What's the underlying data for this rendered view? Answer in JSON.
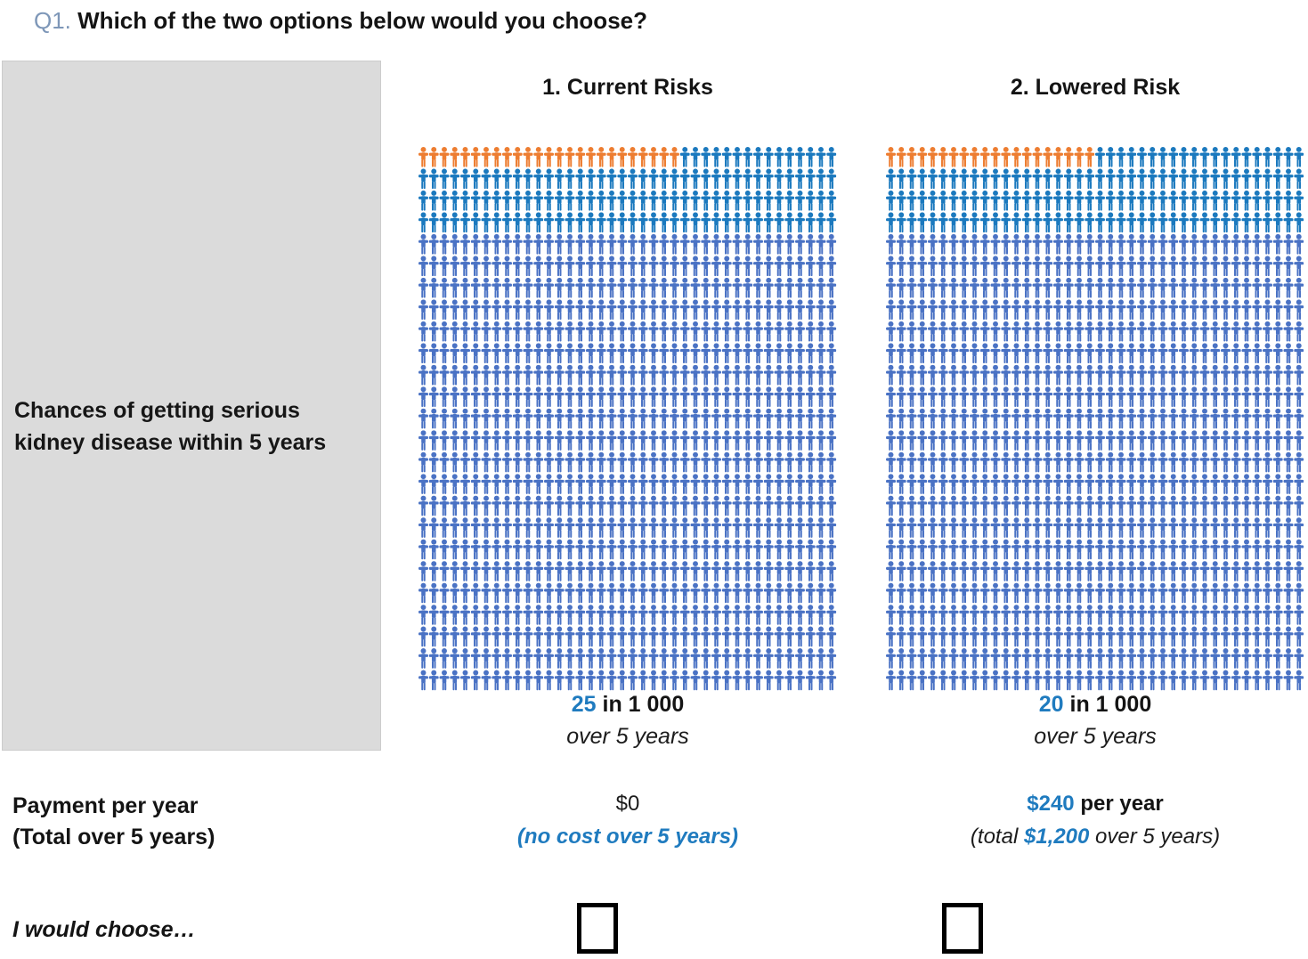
{
  "title": {
    "prefix": "Q1.",
    "text": " Which of the two options below would you choose?"
  },
  "rows": {
    "risk_label": "Chances of getting serious kidney disease within 5 years",
    "payment_label_line1": "Payment per year",
    "payment_label_line2": "(Total over 5 years)",
    "choose_label": "I would choose…"
  },
  "options": [
    {
      "header": "1. Current Risks",
      "risk_value": "25",
      "risk_suffix": " in 1 000",
      "risk_period": "over 5 years",
      "payment_main": "$0",
      "payment_note": "(no cost over 5 years)"
    },
    {
      "header": "2. Lowered Risk",
      "risk_value": "20",
      "risk_suffix": " in 1 000",
      "risk_period": "over 5 years",
      "payment_value": "$240",
      "payment_suffix": " per year",
      "payment_note_prefix": "(total ",
      "payment_note_value": "$1,200",
      "payment_note_suffix": " over 5 years)"
    }
  ],
  "choices": {
    "option1_selected": false,
    "option2_selected": false
  },
  "colors": {
    "accent_blue_text": "#1f7bbf",
    "question_prefix_blue": "#7e97b8",
    "gray_box": "#dbdbdb",
    "icon_orange": "#ed7d31",
    "icon_bright_blue": "#1b79be",
    "icon_medium_blue": "#4a72c4"
  },
  "chart_data": [
    {
      "type": "pictograph",
      "title": "1. Current Risks",
      "total_icons": 1000,
      "highlighted_icons": 25,
      "grid": {
        "columns": 40,
        "rows": 25
      },
      "highlight_color": "#ed7d31",
      "top_rows_color": "#1b79be",
      "top_rows": 4,
      "main_color": "#4a72c4",
      "value_label": "25 in 1 000",
      "period_label": "over 5 years"
    },
    {
      "type": "pictograph",
      "title": "2. Lowered Risk",
      "total_icons": 1000,
      "highlighted_icons": 20,
      "grid": {
        "columns": 40,
        "rows": 25
      },
      "highlight_color": "#ed7d31",
      "top_rows_color": "#1b79be",
      "top_rows": 4,
      "main_color": "#4a72c4",
      "value_label": "20 in 1 000",
      "period_label": "over 5 years"
    }
  ]
}
